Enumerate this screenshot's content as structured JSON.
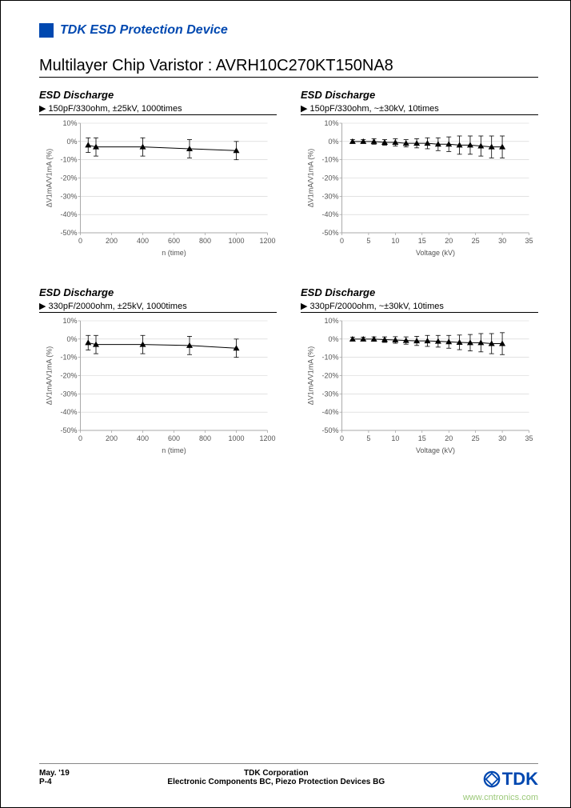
{
  "header": {
    "title": "TDK ESD Protection Device"
  },
  "main_title": "Multilayer Chip Varistor : AVRH10C270KT150NA8",
  "charts": [
    {
      "title": "ESD Discharge",
      "subtitle": "▶ 150pF/330ohm, ±25kV, 1000times",
      "ylabel": "ΔV1mA/V1mA (%)",
      "xlabel": "n (time)",
      "xlim": [
        0,
        1200
      ],
      "ylim": [
        -50,
        10
      ],
      "xticks": [
        0,
        200,
        400,
        600,
        800,
        1000,
        1200
      ],
      "xticklabels": [
        "0",
        "200",
        "400",
        "600",
        "800",
        "1000",
        "1200"
      ],
      "yticks": [
        -50,
        -40,
        -30,
        -20,
        -10,
        0,
        10
      ],
      "yticklabels": [
        "-50%",
        "-40%",
        "-30%",
        "-20%",
        "-10%",
        "0%",
        "10%"
      ],
      "grid_color": "#d0d0d0",
      "line_color": "#000000",
      "marker": "triangle",
      "data_x": [
        50,
        100,
        400,
        700,
        1000
      ],
      "data_y": [
        -2,
        -3,
        -3,
        -4,
        -5
      ],
      "err": [
        4,
        5,
        5,
        5,
        5
      ]
    },
    {
      "title": "ESD Discharge",
      "subtitle": "▶ 150pF/330ohm, ~±30kV, 10times",
      "ylabel": "ΔV1mA/V1mA (%)",
      "xlabel": "Voltage (kV)",
      "xlim": [
        0,
        35
      ],
      "ylim": [
        -50,
        10
      ],
      "xticks": [
        0,
        5,
        10,
        15,
        20,
        25,
        30,
        35
      ],
      "xticklabels": [
        "0",
        "5",
        "10",
        "15",
        "20",
        "25",
        "30",
        "35"
      ],
      "yticks": [
        -50,
        -40,
        -30,
        -20,
        -10,
        0,
        10
      ],
      "yticklabels": [
        "-50%",
        "-40%",
        "-30%",
        "-20%",
        "-10%",
        "0%",
        "10%"
      ],
      "grid_color": "#d0d0d0",
      "line_color": "#000000",
      "marker": "triangle",
      "data_x": [
        2,
        4,
        6,
        8,
        10,
        12,
        14,
        16,
        18,
        20,
        22,
        24,
        26,
        28,
        30
      ],
      "data_y": [
        0,
        0,
        0,
        -0.5,
        -0.5,
        -1,
        -1,
        -1,
        -1.5,
        -1.5,
        -2,
        -2,
        -2.5,
        -3,
        -3
      ],
      "err": [
        1,
        1,
        1.5,
        1.5,
        2,
        2,
        2.5,
        3,
        3.5,
        4,
        5,
        5,
        5.5,
        6,
        6
      ]
    },
    {
      "title": "ESD Discharge",
      "subtitle": "▶ 330pF/2000ohm, ±25kV, 1000times",
      "ylabel": "ΔV1mA/V1mA (%)",
      "xlabel": "n (time)",
      "xlim": [
        0,
        1200
      ],
      "ylim": [
        -50,
        10
      ],
      "xticks": [
        0,
        200,
        400,
        600,
        800,
        1000,
        1200
      ],
      "xticklabels": [
        "0",
        "200",
        "400",
        "600",
        "800",
        "1000",
        "1200"
      ],
      "yticks": [
        -50,
        -40,
        -30,
        -20,
        -10,
        0,
        10
      ],
      "yticklabels": [
        "-50%",
        "-40%",
        "-30%",
        "-20%",
        "-10%",
        "0%",
        "10%"
      ],
      "grid_color": "#d0d0d0",
      "line_color": "#000000",
      "marker": "triangle",
      "data_x": [
        50,
        100,
        400,
        700,
        1000
      ],
      "data_y": [
        -2,
        -3,
        -3,
        -3.5,
        -5
      ],
      "err": [
        4,
        5,
        5,
        5,
        5
      ]
    },
    {
      "title": "ESD Discharge",
      "subtitle": "▶ 330pF/2000ohm, ~±30kV, 10times",
      "ylabel": "ΔV1mA/V1mA (%)",
      "xlabel": "Voltage (kV)",
      "xlim": [
        0,
        35
      ],
      "ylim": [
        -50,
        10
      ],
      "xticks": [
        0,
        5,
        10,
        15,
        20,
        25,
        30,
        35
      ],
      "xticklabels": [
        "0",
        "5",
        "10",
        "15",
        "20",
        "25",
        "30",
        "35"
      ],
      "yticks": [
        -50,
        -40,
        -30,
        -20,
        -10,
        0,
        10
      ],
      "yticklabels": [
        "-50%",
        "-40%",
        "-30%",
        "-20%",
        "-10%",
        "0%",
        "10%"
      ],
      "grid_color": "#d0d0d0",
      "line_color": "#000000",
      "marker": "triangle",
      "data_x": [
        2,
        4,
        6,
        8,
        10,
        12,
        14,
        16,
        18,
        20,
        22,
        24,
        26,
        28,
        30
      ],
      "data_y": [
        0,
        0,
        0,
        -0.3,
        -0.5,
        -0.8,
        -1,
        -1,
        -1.2,
        -1.5,
        -1.8,
        -2,
        -2,
        -2.5,
        -2.5
      ],
      "err": [
        1,
        1,
        1.2,
        1.5,
        1.8,
        2,
        2.5,
        3,
        3.2,
        3.5,
        4,
        4.5,
        5,
        5.5,
        6
      ]
    }
  ],
  "footer": {
    "date": "May. '19",
    "page": "P-4",
    "company": "TDK Corporation",
    "division": "Electronic Components BC, Piezo Protection Devices BG",
    "logo_color": "#0048b0"
  },
  "watermark": "www.cntronics.com"
}
